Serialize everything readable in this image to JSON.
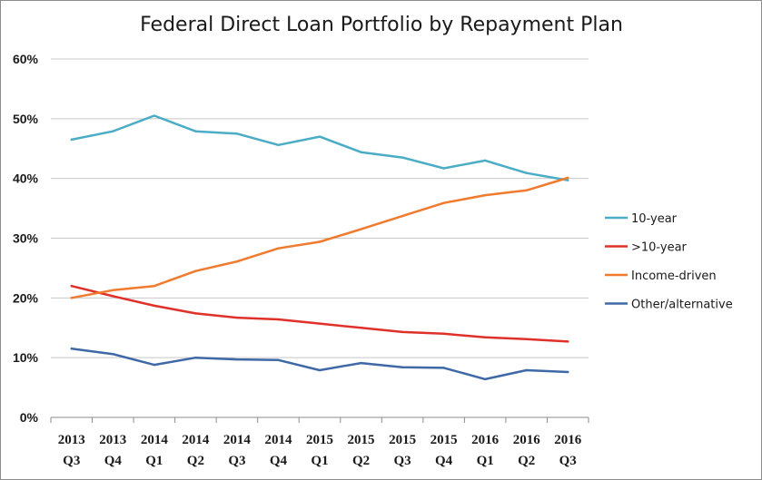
{
  "chart_data": {
    "type": "line",
    "title": "Federal Direct Loan Portfolio by Repayment Plan",
    "xlabel": "",
    "ylabel": "",
    "ylim": [
      0,
      60
    ],
    "y_ticks": [
      "0%",
      "10%",
      "20%",
      "30%",
      "40%",
      "50%",
      "60%"
    ],
    "y_tick_values": [
      0,
      10,
      20,
      30,
      40,
      50,
      60
    ],
    "categories": [
      {
        "year": "2013",
        "quarter": "Q3"
      },
      {
        "year": "2013",
        "quarter": "Q4"
      },
      {
        "year": "2014",
        "quarter": "Q1"
      },
      {
        "year": "2014",
        "quarter": "Q2"
      },
      {
        "year": "2014",
        "quarter": "Q3"
      },
      {
        "year": "2014",
        "quarter": "Q4"
      },
      {
        "year": "2015",
        "quarter": "Q1"
      },
      {
        "year": "2015",
        "quarter": "Q2"
      },
      {
        "year": "2015",
        "quarter": "Q3"
      },
      {
        "year": "2015",
        "quarter": "Q4"
      },
      {
        "year": "2016",
        "quarter": "Q1"
      },
      {
        "year": "2016",
        "quarter": "Q2"
      },
      {
        "year": "2016",
        "quarter": "Q3"
      }
    ],
    "grid": true,
    "legend_position": "right",
    "series": [
      {
        "name": "10-year",
        "color": "#4BACC6",
        "values": [
          46.5,
          47.9,
          50.5,
          47.9,
          47.5,
          45.6,
          47.0,
          44.4,
          43.5,
          41.7,
          43.0,
          40.9,
          39.7
        ]
      },
      {
        "name": ">10-year",
        "color": "#E0302A",
        "values": [
          22.0,
          20.3,
          18.7,
          17.4,
          16.7,
          16.4,
          15.7,
          15.0,
          14.3,
          14.0,
          13.4,
          13.1,
          12.7
        ]
      },
      {
        "name": "Income-driven",
        "color": "#F07A2E",
        "values": [
          20.0,
          21.3,
          22.0,
          24.5,
          26.1,
          28.3,
          29.4,
          31.5,
          33.7,
          35.9,
          37.2,
          38.0,
          40.1
        ]
      },
      {
        "name": "Other/alternative",
        "color": "#3E68A6",
        "values": [
          11.5,
          10.6,
          8.8,
          10.0,
          9.7,
          9.6,
          7.9,
          9.1,
          8.4,
          8.3,
          6.4,
          7.9,
          7.6
        ]
      }
    ]
  }
}
